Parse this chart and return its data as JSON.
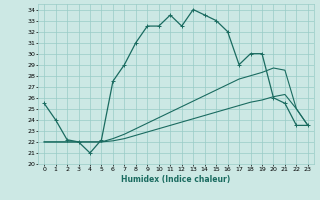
{
  "xlabel": "Humidex (Indice chaleur)",
  "ylabel": "",
  "xlim": [
    -0.5,
    23.5
  ],
  "ylim": [
    20,
    34.5
  ],
  "yticks": [
    20,
    21,
    22,
    23,
    24,
    25,
    26,
    27,
    28,
    29,
    30,
    31,
    32,
    33,
    34
  ],
  "xticks": [
    0,
    1,
    2,
    3,
    4,
    5,
    6,
    7,
    8,
    9,
    10,
    11,
    12,
    13,
    14,
    15,
    16,
    17,
    18,
    19,
    20,
    21,
    22,
    23
  ],
  "bg_color": "#cce8e4",
  "grid_color": "#99ccc7",
  "line_color": "#1a6b60",
  "humidex": [
    25.5,
    24.0,
    22.2,
    22.0,
    21.0,
    22.2,
    27.5,
    29.0,
    31.0,
    32.5,
    32.5,
    33.5,
    32.5,
    34.0,
    33.5,
    33.0,
    32.0,
    29.0,
    30.0,
    30.0,
    26.0,
    25.5,
    23.5,
    23.5
  ],
  "line2": [
    22.0,
    22.0,
    22.0,
    22.0,
    22.0,
    22.0,
    22.3,
    22.7,
    23.2,
    23.7,
    24.2,
    24.7,
    25.2,
    25.7,
    26.2,
    26.7,
    27.2,
    27.7,
    28.0,
    28.3,
    28.7,
    28.5,
    25.0,
    23.5
  ],
  "line3": [
    22.0,
    22.0,
    22.0,
    22.0,
    22.0,
    22.0,
    22.1,
    22.3,
    22.6,
    22.9,
    23.2,
    23.5,
    23.8,
    24.1,
    24.4,
    24.7,
    25.0,
    25.3,
    25.6,
    25.8,
    26.1,
    26.3,
    25.0,
    23.5
  ]
}
